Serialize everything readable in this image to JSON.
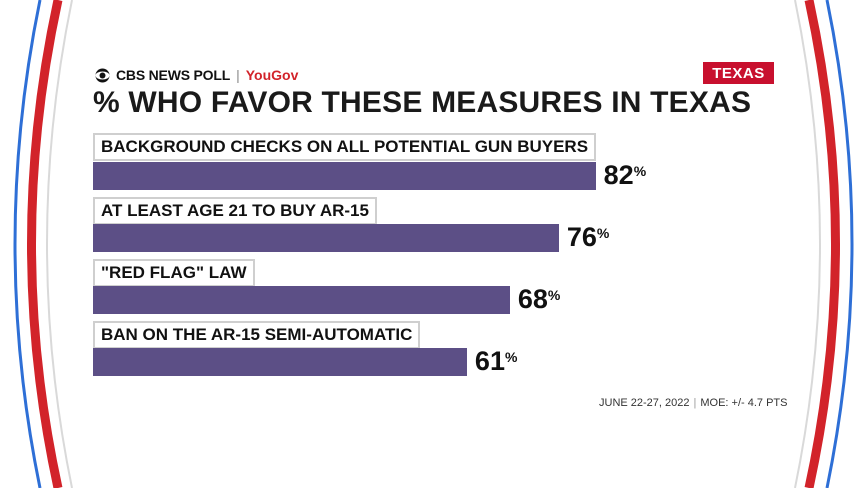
{
  "brand": {
    "network": "CBS NEWS POLL",
    "separator": "|",
    "partner": "YouGov"
  },
  "state_badge": "TEXAS",
  "headline": "% WHO FAVOR THESE MEASURES IN TEXAS",
  "footer": {
    "dates": "JUNE 22-27, 2022",
    "separator": "|",
    "moe": "MOE: +/- 4.7 PTS"
  },
  "colors": {
    "bar": "#5c4f86",
    "frame_red": "#d2232a",
    "frame_blue": "#2e6fd6",
    "badge": "#c8102e"
  },
  "chart_data": {
    "type": "bar",
    "orientation": "horizontal",
    "title": "% WHO FAVOR THESE MEASURES IN TEXAS",
    "categories": [
      "BACKGROUND CHECKS ON ALL POTENTIAL GUN BUYERS",
      "AT LEAST AGE 21 TO BUY AR-15",
      "\"RED FLAG\" LAW",
      "BAN ON THE AR-15 SEMI-AUTOMATIC"
    ],
    "values": [
      82,
      76,
      68,
      61
    ],
    "value_labels": [
      "82",
      "76",
      "68",
      "61"
    ],
    "unit": "%",
    "xlim": [
      0,
      100
    ],
    "grid": false
  }
}
